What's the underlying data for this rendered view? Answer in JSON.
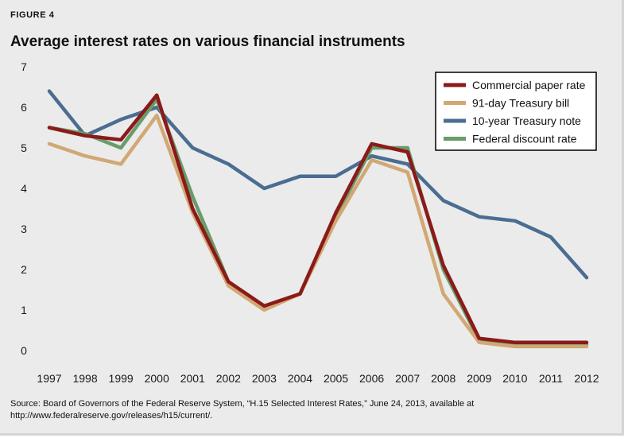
{
  "figure": {
    "label": "FIGURE 4",
    "title": "Average interest rates on various financial instruments",
    "source_lines": [
      "Source: Board of Governors of the Federal Reserve System, “H.15 Selected Interest Rates,” June 24, 2013, available at",
      "http://www.federalreserve.gov/releases/h15/current/."
    ]
  },
  "chart_data": {
    "type": "line",
    "title": "Average interest rates on various financial instruments",
    "xlabel": "",
    "ylabel": "",
    "x": [
      "1997",
      "1998",
      "1999",
      "2000",
      "2001",
      "2002",
      "2003",
      "2004",
      "2005",
      "2006",
      "2007",
      "2008",
      "2009",
      "2010",
      "2011",
      "2012"
    ],
    "ylim": [
      0,
      7
    ],
    "yticks": [
      0,
      1,
      2,
      3,
      4,
      5,
      6,
      7
    ],
    "grid": false,
    "legend_position": "top-right",
    "series": [
      {
        "name": "10-year Treasury note",
        "color": "#4a6d91",
        "values": [
          6.4,
          5.3,
          5.7,
          6.0,
          5.0,
          4.6,
          4.0,
          4.3,
          4.3,
          4.8,
          4.6,
          3.7,
          3.3,
          3.2,
          2.8,
          1.8
        ]
      },
      {
        "name": "Federal discount rate",
        "color": "#6a9c6a",
        "values": [
          5.5,
          5.35,
          5.0,
          6.2,
          3.8,
          1.7,
          1.05,
          1.4,
          3.3,
          5.0,
          5.0,
          2.0,
          0.25,
          0.15,
          0.15,
          0.15
        ]
      },
      {
        "name": "91-day Treasury bill",
        "color": "#d1a874",
        "values": [
          5.1,
          4.8,
          4.6,
          5.8,
          3.4,
          1.6,
          1.0,
          1.4,
          3.2,
          4.7,
          4.4,
          1.4,
          0.2,
          0.1,
          0.1,
          0.1
        ]
      },
      {
        "name": "Commercial paper rate",
        "color": "#8b1a1a",
        "values": [
          5.5,
          5.3,
          5.2,
          6.3,
          3.5,
          1.7,
          1.1,
          1.4,
          3.4,
          5.1,
          4.9,
          2.1,
          0.3,
          0.2,
          0.2,
          0.2
        ]
      }
    ],
    "legend_order": [
      "Commercial paper rate",
      "91-day Treasury bill",
      "10-year Treasury note",
      "Federal discount rate"
    ]
  }
}
